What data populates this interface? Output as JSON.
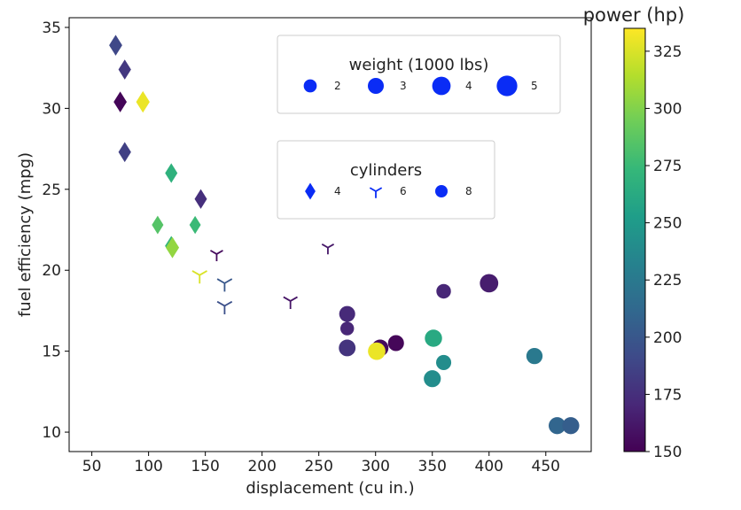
{
  "chart_data": {
    "type": "scatter",
    "xlabel": "displacement (cu in.)",
    "ylabel": "fuel efficiency (mpg)",
    "xlim": [
      30,
      490
    ],
    "ylim": [
      8.8,
      35.6
    ],
    "x_ticks": [
      50,
      100,
      150,
      200,
      250,
      300,
      350,
      400,
      450
    ],
    "y_ticks": [
      10,
      15,
      20,
      25,
      30,
      35
    ],
    "grid": false,
    "colorbar": {
      "title": "power (hp)",
      "range": [
        150,
        335
      ],
      "ticks": [
        150,
        175,
        200,
        225,
        250,
        275,
        300,
        325
      ],
      "colormap": "viridis"
    },
    "size_legend": {
      "title": "weight (1000 lbs)",
      "placement": "top-right",
      "entries": [
        {
          "label": "2",
          "value": 2
        },
        {
          "label": "3",
          "value": 3
        },
        {
          "label": "4",
          "value": 4
        },
        {
          "label": "5",
          "value": 5
        }
      ]
    },
    "marker_legend": {
      "title": "cylinders",
      "placement": "upper-center-right",
      "entries": [
        {
          "label": "4",
          "marker": "diamond"
        },
        {
          "label": "6",
          "marker": "tri"
        },
        {
          "label": "8",
          "marker": "circle"
        }
      ]
    },
    "legend_color": "#0a2cf5",
    "points": [
      {
        "x": 71,
        "y": 33.9,
        "hp": 190,
        "weight": 2.8,
        "cyl": 4
      },
      {
        "x": 79,
        "y": 32.4,
        "hp": 180,
        "weight": 2.6,
        "cyl": 4
      },
      {
        "x": 75,
        "y": 30.4,
        "hp": 152,
        "weight": 2.8,
        "cyl": 4
      },
      {
        "x": 95,
        "y": 30.4,
        "hp": 330,
        "weight": 3.0,
        "cyl": 4
      },
      {
        "x": 79,
        "y": 27.3,
        "hp": 185,
        "weight": 2.6,
        "cyl": 4
      },
      {
        "x": 120,
        "y": 26.0,
        "hp": 268,
        "weight": 2.5,
        "cyl": 4
      },
      {
        "x": 146,
        "y": 24.4,
        "hp": 175,
        "weight": 2.5,
        "cyl": 4
      },
      {
        "x": 108,
        "y": 22.8,
        "hp": 285,
        "weight": 2.2,
        "cyl": 4
      },
      {
        "x": 141,
        "y": 22.8,
        "hp": 275,
        "weight": 2.1,
        "cyl": 4
      },
      {
        "x": 120,
        "y": 21.5,
        "hp": 272,
        "weight": 2.6,
        "cyl": 4
      },
      {
        "x": 121,
        "y": 21.4,
        "hp": 305,
        "weight": 2.9,
        "cyl": 4
      },
      {
        "x": 160,
        "y": 21.0,
        "hp": 155,
        "weight": 2.0,
        "cyl": 6
      },
      {
        "x": 258,
        "y": 21.4,
        "hp": 162,
        "weight": 1.8,
        "cyl": 6
      },
      {
        "x": 145,
        "y": 19.7,
        "hp": 325,
        "weight": 2.8,
        "cyl": 6
      },
      {
        "x": 167,
        "y": 19.2,
        "hp": 200,
        "weight": 2.8,
        "cyl": 6
      },
      {
        "x": 167,
        "y": 17.8,
        "hp": 195,
        "weight": 2.8,
        "cyl": 6
      },
      {
        "x": 225,
        "y": 18.1,
        "hp": 160,
        "weight": 2.5,
        "cyl": 6
      },
      {
        "x": 360,
        "y": 18.7,
        "hp": 170,
        "weight": 2.5,
        "cyl": 8
      },
      {
        "x": 400,
        "y": 19.2,
        "hp": 165,
        "weight": 4.0,
        "cyl": 8
      },
      {
        "x": 275,
        "y": 17.3,
        "hp": 172,
        "weight": 3.0,
        "cyl": 8
      },
      {
        "x": 275,
        "y": 16.4,
        "hp": 170,
        "weight": 2.2,
        "cyl": 8
      },
      {
        "x": 275,
        "y": 15.2,
        "hp": 178,
        "weight": 3.3,
        "cyl": 8
      },
      {
        "x": 304,
        "y": 15.2,
        "hp": 155,
        "weight": 3.3,
        "cyl": 8
      },
      {
        "x": 318,
        "y": 15.5,
        "hp": 153,
        "weight": 3.0,
        "cyl": 8
      },
      {
        "x": 301,
        "y": 15.0,
        "hp": 330,
        "weight": 3.6,
        "cyl": 8
      },
      {
        "x": 351,
        "y": 15.8,
        "hp": 262,
        "weight": 3.5,
        "cyl": 8
      },
      {
        "x": 360,
        "y": 14.3,
        "hp": 240,
        "weight": 2.7,
        "cyl": 8
      },
      {
        "x": 350,
        "y": 13.3,
        "hp": 240,
        "weight": 3.4,
        "cyl": 8
      },
      {
        "x": 440,
        "y": 14.7,
        "hp": 225,
        "weight": 3.1,
        "cyl": 8
      },
      {
        "x": 460,
        "y": 10.4,
        "hp": 210,
        "weight": 3.4,
        "cyl": 8
      },
      {
        "x": 472,
        "y": 10.4,
        "hp": 205,
        "weight": 3.4,
        "cyl": 8
      }
    ]
  }
}
